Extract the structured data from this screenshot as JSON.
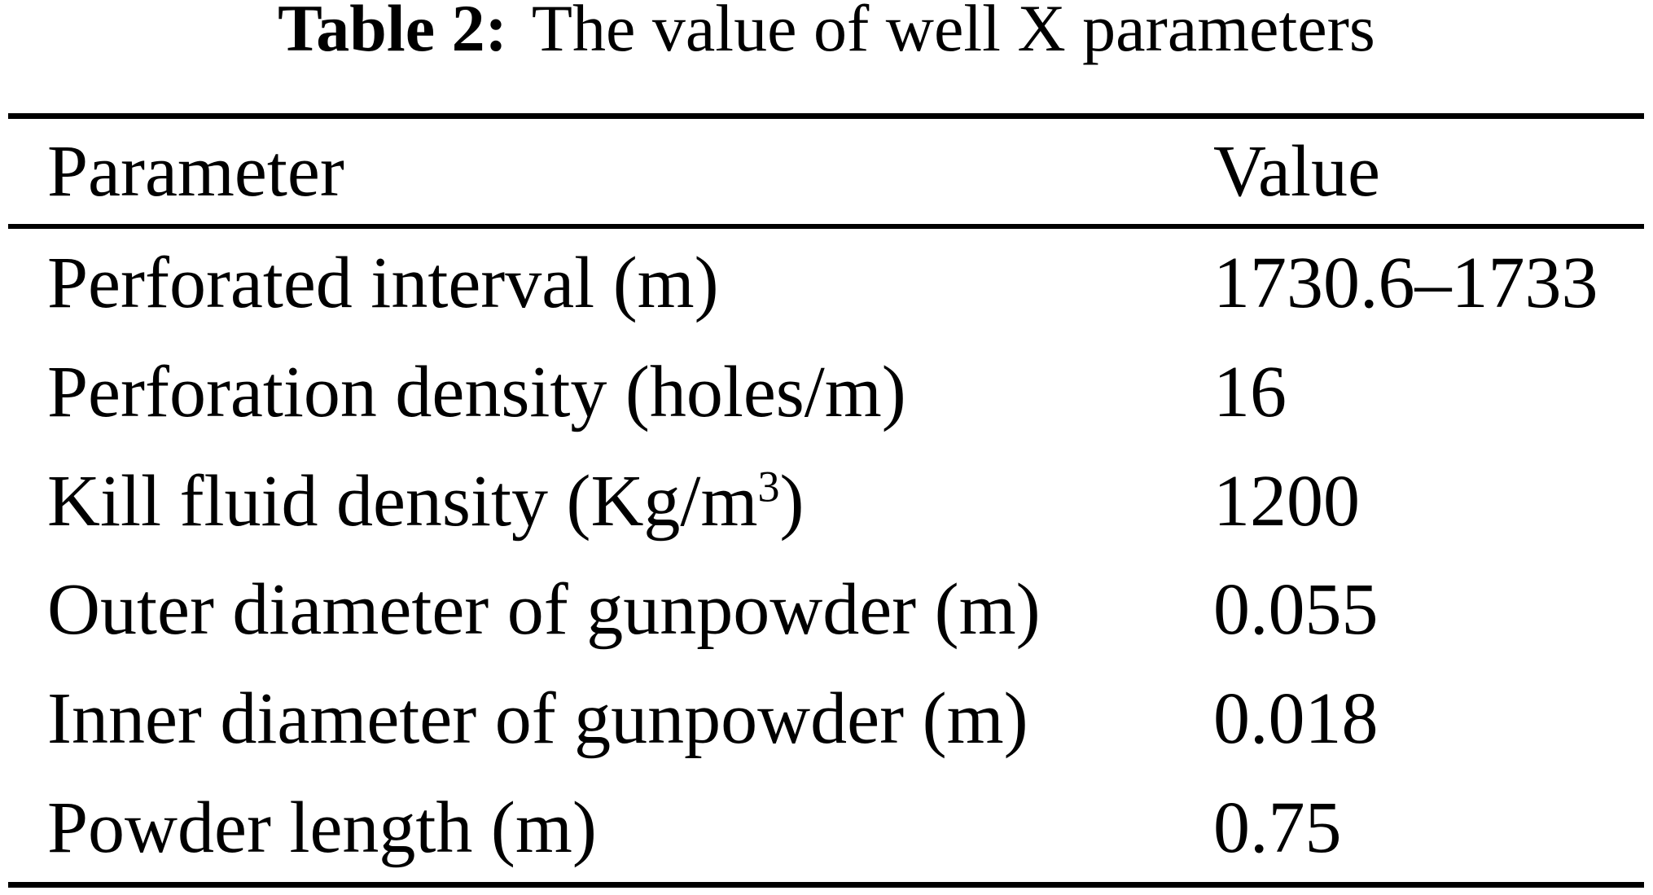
{
  "title": {
    "label": "Table 2:",
    "text": "The value of well X parameters"
  },
  "table": {
    "columns": [
      "Parameter",
      "Value"
    ],
    "rows": [
      {
        "parameter": "Perforated interval (m)",
        "value": "1730.6–1733"
      },
      {
        "parameter": "Perforation density (holes/m)",
        "value": "16"
      },
      {
        "parameter": "Kill fluid density (Kg/m³)",
        "value": "1200",
        "param_parts": [
          "Kill fluid density (Kg/m",
          "3",
          ")"
        ]
      },
      {
        "parameter": "Outer diameter of gunpowder (m)",
        "value": "0.055"
      },
      {
        "parameter": "Inner diameter of gunpowder (m)",
        "value": "0.018"
      },
      {
        "parameter": "Powder length (m)",
        "value": "0.75"
      }
    ]
  },
  "colors": {
    "background": "#ffffff",
    "text": "#000000",
    "rule": "#000000"
  }
}
